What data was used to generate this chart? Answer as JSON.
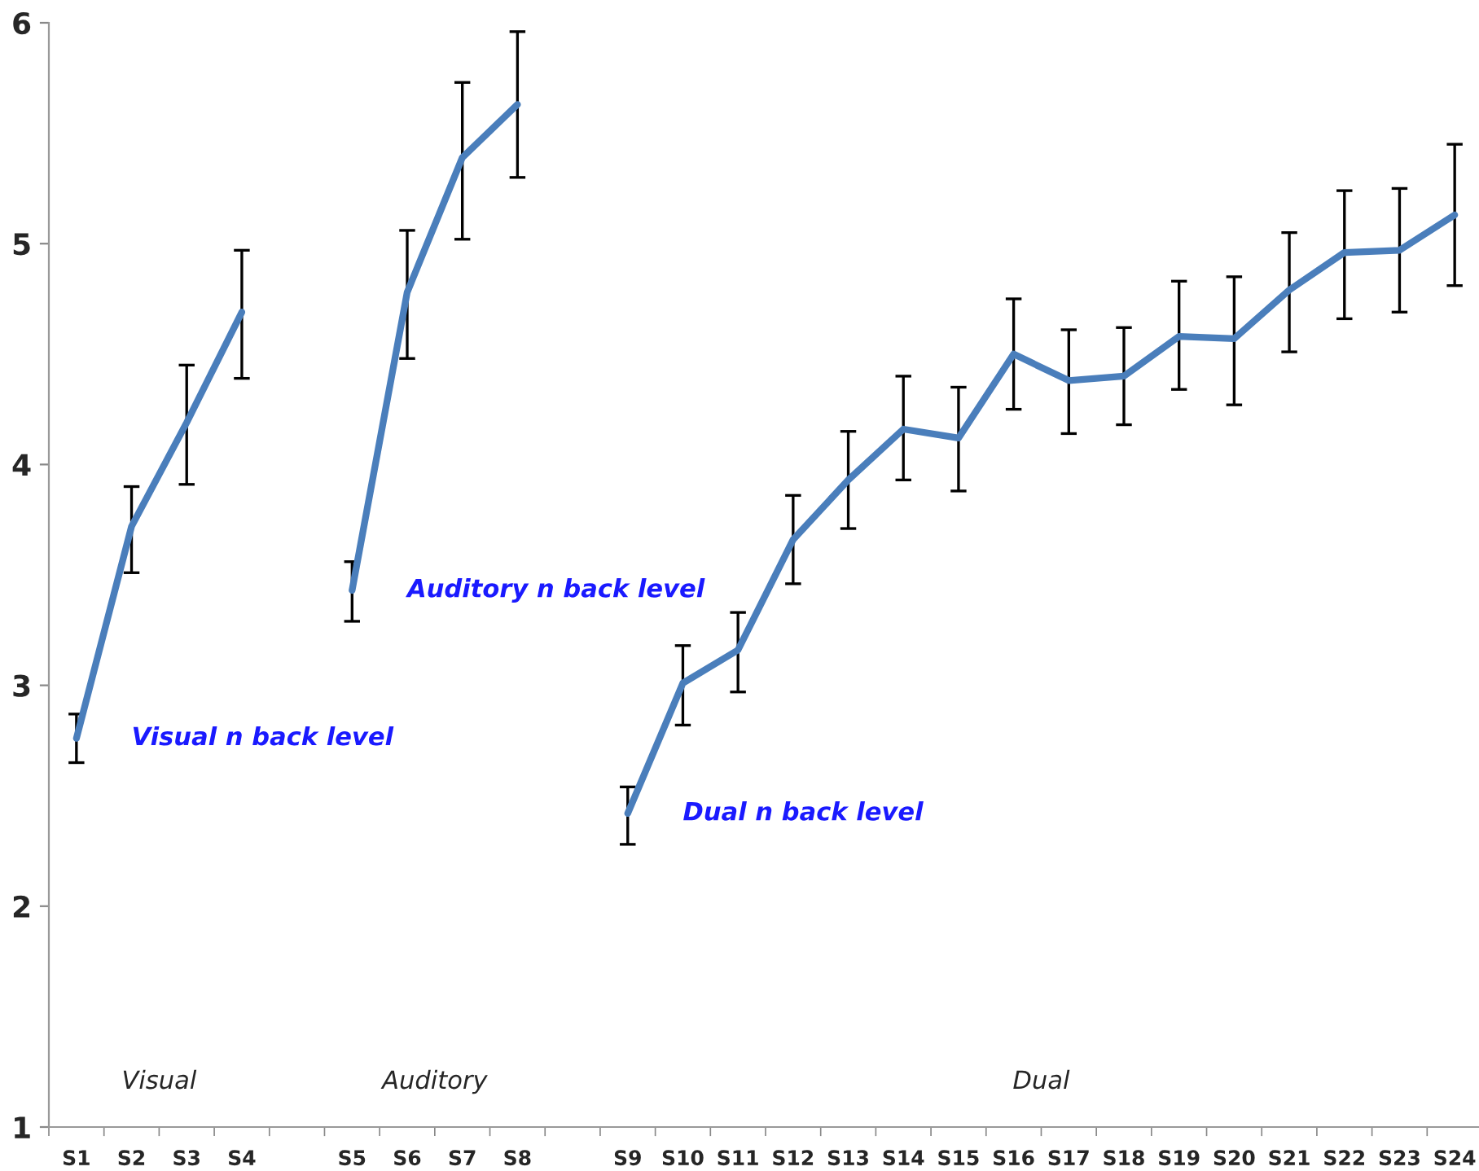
{
  "chart_data": {
    "type": "line",
    "categories": [
      "S1",
      "S2",
      "S3",
      "S4",
      null,
      "S5",
      "S6",
      "S7",
      "S8",
      null,
      "S9",
      "S10",
      "S11",
      "S12",
      "S13",
      "S14",
      "S15",
      "S16",
      "S17",
      "S18",
      "S19",
      "S20",
      "S21",
      "S22",
      "S23",
      "S24"
    ],
    "series": [
      {
        "name": "Visual n back level",
        "color": "#4a7ebb",
        "values": [
          2.76,
          3.72,
          4.19,
          4.69,
          null,
          null,
          null,
          null,
          null,
          null,
          null,
          null,
          null,
          null,
          null,
          null,
          null,
          null,
          null,
          null,
          null,
          null,
          null,
          null,
          null,
          null
        ],
        "errors": [
          [
            2.65,
            2.87
          ],
          [
            3.51,
            3.9
          ],
          [
            3.91,
            4.45
          ],
          [
            4.39,
            4.97
          ],
          null,
          null,
          null,
          null,
          null,
          null,
          null,
          null,
          null,
          null,
          null,
          null,
          null,
          null,
          null,
          null,
          null,
          null,
          null,
          null,
          null,
          null
        ]
      },
      {
        "name": "Auditory n back level",
        "color": "#4a7ebb",
        "values": [
          null,
          null,
          null,
          null,
          null,
          3.43,
          4.78,
          5.39,
          5.63,
          null,
          null,
          null,
          null,
          null,
          null,
          null,
          null,
          null,
          null,
          null,
          null,
          null,
          null,
          null,
          null,
          null
        ],
        "errors": [
          null,
          null,
          null,
          null,
          null,
          [
            3.29,
            3.56
          ],
          [
            4.48,
            5.06
          ],
          [
            5.02,
            5.73
          ],
          [
            5.3,
            5.96
          ],
          null,
          null,
          null,
          null,
          null,
          null,
          null,
          null,
          null,
          null,
          null,
          null,
          null,
          null,
          null,
          null,
          null
        ]
      },
      {
        "name": "Dual n back level",
        "color": "#4a7ebb",
        "values": [
          null,
          null,
          null,
          null,
          null,
          null,
          null,
          null,
          null,
          null,
          2.42,
          3.01,
          3.16,
          3.66,
          3.93,
          4.16,
          4.12,
          4.5,
          4.38,
          4.4,
          4.58,
          4.57,
          4.79,
          4.96,
          4.97,
          5.13
        ],
        "errors": [
          null,
          null,
          null,
          null,
          null,
          null,
          null,
          null,
          null,
          null,
          [
            2.28,
            2.54
          ],
          [
            2.82,
            3.18
          ],
          [
            2.97,
            3.33
          ],
          [
            3.46,
            3.86
          ],
          [
            3.71,
            4.15
          ],
          [
            3.93,
            4.4
          ],
          [
            3.88,
            4.35
          ],
          [
            4.25,
            4.75
          ],
          [
            4.14,
            4.61
          ],
          [
            4.18,
            4.62
          ],
          [
            4.34,
            4.83
          ],
          [
            4.27,
            4.85
          ],
          [
            4.51,
            5.05
          ],
          [
            4.66,
            5.24
          ],
          [
            4.69,
            5.25
          ],
          [
            4.81,
            5.45
          ]
        ]
      }
    ],
    "annotations": [
      "Visual",
      "Auditory",
      "Dual"
    ],
    "ylim": [
      1,
      6
    ],
    "yticks": [
      1,
      2,
      3,
      4,
      5,
      6
    ],
    "grid": false,
    "legend": false,
    "marker": "none",
    "line_style": "solid"
  }
}
